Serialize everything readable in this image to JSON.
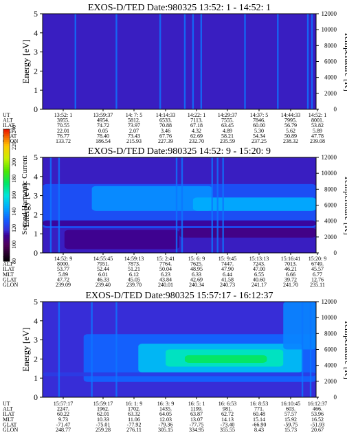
{
  "chart_data": [
    {
      "type": "heatmap",
      "title": "EXOS-D/TED    Date:980325  13:52: 1 - 14:52: 1",
      "ylabel": "Energy [eV]",
      "y2label": "Temperature [K]",
      "ylim": [
        0,
        5
      ],
      "y2lim": [
        0,
        12000
      ],
      "yticks": [
        "0",
        "1",
        "2",
        "3",
        "4",
        "5"
      ],
      "y2ticks": [
        "0",
        "2000",
        "4000",
        "6000",
        "8000",
        "10000",
        "12000"
      ],
      "background_level": 116,
      "bands": [],
      "spikes": [
        0.12,
        0.27,
        0.43,
        0.52,
        0.55,
        0.58,
        0.74,
        0.86,
        0.97,
        0.985
      ],
      "rows": [
        {
          "label": "UT",
          "values": [
            "13:52: 1",
            "13:59:37",
            "14: 7: 5",
            "14:14:33",
            "14:22: 1",
            "14:29:37",
            "14:37: 5",
            "14:44:33",
            "14:52: 1"
          ]
        },
        {
          "label": "ALT",
          "values": [
            "3955.",
            "4954.",
            "5812.",
            "6533.",
            "7113.",
            "7555.",
            "7846.",
            "7995.",
            "8001."
          ]
        },
        {
          "label": "ILAT",
          "values": [
            "70.55",
            "74.72",
            "73.97",
            "70.88",
            "67.18",
            "63.45",
            "60.00",
            "56.79",
            "53.82"
          ]
        },
        {
          "label": "MLT",
          "values": [
            "22.01",
            "0.05",
            "2.07",
            "3.46",
            "4.32",
            "4.89",
            "5.30",
            "5.62",
            "5.89"
          ]
        },
        {
          "label": "GLAT",
          "values": [
            "76.77",
            "78.40",
            "73.43",
            "67.76",
            "62.69",
            "58.21",
            "54.34",
            "50.89",
            "47.78"
          ]
        },
        {
          "label": "GLON",
          "values": [
            "133.72",
            "186.54",
            "215.93",
            "227.39",
            "232.70",
            "235.59",
            "237.25",
            "238.32",
            "239.08"
          ]
        }
      ]
    },
    {
      "type": "heatmap",
      "title": "EXOS-D/TED    Date:980325  14:52: 9 - 15:20: 9",
      "ylabel": "Energy [eV]",
      "y2label": "Temperature [K]",
      "ylim": [
        0,
        5
      ],
      "y2lim": [
        0,
        12000
      ],
      "yticks": [
        "0",
        "1",
        "2",
        "3",
        "4",
        "5"
      ],
      "y2ticks": [
        "0",
        "2000",
        "4000",
        "6000",
        "8000",
        "10000",
        "12000"
      ],
      "background_level": 116,
      "bands": [
        {
          "x0": 0.0,
          "x1": 1.0,
          "y0": 1.3,
          "y1": 3.6,
          "level": 128
        },
        {
          "x0": 0.18,
          "x1": 0.62,
          "y0": 2.2,
          "y1": 3.5,
          "level": 140
        },
        {
          "x0": 0.55,
          "x1": 1.0,
          "y0": 2.2,
          "y1": 2.9,
          "level": 146
        },
        {
          "x0": 0.0,
          "x1": 1.0,
          "y0": 1.4,
          "y1": 1.7,
          "level": 112
        },
        {
          "x0": 0.08,
          "x1": 0.5,
          "y0": 0.2,
          "y1": 1.2,
          "level": 110
        },
        {
          "x0": 0.5,
          "x1": 1.0,
          "y0": 0.8,
          "y1": 1.3,
          "level": 108
        }
      ],
      "spikes": [
        0.03,
        0.06,
        0.49,
        0.51,
        0.62,
        0.64,
        0.66
      ],
      "rows": [
        {
          "label": "UT",
          "values": [
            "14:52: 9",
            "14:55:45",
            "14:59:13",
            "15: 2:41",
            "15: 6: 9",
            "15: 9:45",
            "15:13:13",
            "15:16:41",
            "15:20: 9"
          ]
        },
        {
          "label": "ALT",
          "values": [
            "8000.",
            "7951.",
            "7873.",
            "7764.",
            "7625.",
            "7447.",
            "7243.",
            "7013.",
            "6749."
          ]
        },
        {
          "label": "ILAT",
          "values": [
            "53.77",
            "52.44",
            "51.21",
            "50.04",
            "48.95",
            "47.90",
            "47.00",
            "46.21",
            "45.57"
          ]
        },
        {
          "label": "MLT",
          "values": [
            "5.89",
            "6.01",
            "6.12",
            "6.23",
            "6.33",
            "6.44",
            "6.55",
            "6.66",
            "6.77"
          ]
        },
        {
          "label": "GLAT",
          "values": [
            "47.72",
            "46.33",
            "45.05",
            "43.84",
            "42.69",
            "41.58",
            "40.60",
            "39.72",
            "12.76"
          ]
        },
        {
          "label": "GLON",
          "values": [
            "239.09",
            "239.40",
            "239.70",
            "240.01",
            "240.34",
            "240.73",
            "241.17",
            "241.70",
            "235.11"
          ]
        }
      ]
    },
    {
      "type": "heatmap",
      "title": "EXOS-D/TED    Date:980325  15:57:17 - 16:12:37",
      "ylabel": "Energy [eV]",
      "y2label": "Temperature [K]",
      "ylim": [
        0,
        5
      ],
      "y2lim": [
        0,
        12000
      ],
      "yticks": [
        "0",
        "1",
        "2",
        "3",
        "4",
        "5"
      ],
      "y2ticks": [
        "0",
        "2000",
        "4000",
        "6000",
        "8000",
        "10000",
        "12000"
      ],
      "background_level": 118,
      "bands": [
        {
          "x0": 0.15,
          "x1": 1.0,
          "y0": 0.8,
          "y1": 3.3,
          "level": 132
        },
        {
          "x0": 0.35,
          "x1": 0.95,
          "y0": 1.3,
          "y1": 2.8,
          "level": 150
        },
        {
          "x0": 0.45,
          "x1": 0.88,
          "y0": 1.6,
          "y1": 2.5,
          "level": 164
        },
        {
          "x0": 0.52,
          "x1": 0.82,
          "y0": 1.8,
          "y1": 2.2,
          "level": 176
        },
        {
          "x0": 0.0,
          "x1": 1.0,
          "y0": 1.1,
          "y1": 1.3,
          "level": 122
        },
        {
          "x0": 0.88,
          "x1": 1.0,
          "y0": 2.5,
          "y1": 5.0,
          "level": 138
        }
      ],
      "spikes": [
        0.06,
        0.18,
        0.27,
        0.95,
        0.98
      ],
      "rows": [
        {
          "label": "UT",
          "values": [
            "15:57:17",
            "15:59:17",
            "16: 1: 9",
            "16: 3: 9",
            "16: 5: 1",
            "16: 6:53",
            "16: 8:53",
            "16:10:45",
            "16:12:37"
          ]
        },
        {
          "label": "ALT",
          "values": [
            "2247.",
            "1962.",
            "1702.",
            "1435.",
            "1199.",
            "981.",
            "771.",
            "603.",
            "466."
          ]
        },
        {
          "label": "ILAT",
          "values": [
            "60.22",
            "62.01",
            "63.32",
            "64.05",
            "63.87",
            "62.72",
            "60.48",
            "57.57",
            "53.96"
          ]
        },
        {
          "label": "MLT",
          "values": [
            "9.73",
            "10.33",
            "11.06",
            "12.03",
            "13.07",
            "14.13",
            "15.14",
            "15.92",
            "16.52"
          ]
        },
        {
          "label": "GLAT",
          "values": [
            "-71.47",
            "-75.01",
            "-77.92",
            "-79.36",
            "-77.75",
            "-73.40",
            "-66.90",
            "-59.75",
            "-51.93"
          ]
        },
        {
          "label": "GLON",
          "values": [
            "248.77",
            "259.28",
            "276.11",
            "305.15",
            "334.95",
            "355.55",
            "8.43",
            "15.73",
            "20.67"
          ]
        }
      ]
    }
  ],
  "colorbar": {
    "label": "Second Harmonic Current",
    "min": 80,
    "max": 240,
    "ticks": [
      "80",
      "100",
      "120",
      "140",
      "160",
      "180",
      "200",
      "220",
      "240"
    ]
  }
}
